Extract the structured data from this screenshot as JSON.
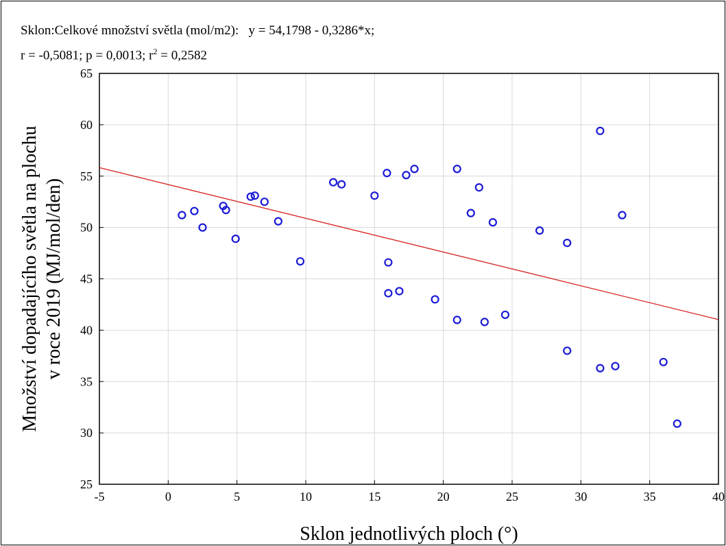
{
  "header": {
    "line1": "Sklon:Celkové množství světla (mol/m2):   y = 54,1798 - 0,3286*x;",
    "line2_prefix": "r = -0,5081; p = 0,0013; r",
    "line2_exp": "2",
    "line2_suffix": " = 0,2582"
  },
  "colors": {
    "points": "#1a1ad6",
    "fit_line": "#d62020",
    "grid": "#d8d8d8"
  },
  "chart_data": {
    "type": "scatter",
    "xlabel": "Sklon jednotlivých ploch (°)",
    "ylabel_lines": [
      "Množství dopadajícího světla na plochu",
      "v roce 2019 (MJ/mol/den)"
    ],
    "xlim": [
      -5,
      40
    ],
    "ylim": [
      25,
      65
    ],
    "xticks": [
      -5,
      0,
      5,
      10,
      15,
      20,
      25,
      30,
      35,
      40
    ],
    "yticks": [
      25,
      30,
      35,
      40,
      45,
      50,
      55,
      60,
      65
    ],
    "grid": true,
    "fit_line": {
      "intercept": 54.1798,
      "slope": -0.3286
    },
    "points": [
      [
        1.0,
        51.2
      ],
      [
        1.9,
        51.6
      ],
      [
        2.5,
        50.0
      ],
      [
        4.0,
        52.1
      ],
      [
        4.2,
        51.7
      ],
      [
        4.9,
        48.9
      ],
      [
        6.0,
        53.0
      ],
      [
        6.3,
        53.1
      ],
      [
        7.0,
        52.5
      ],
      [
        8.0,
        50.6
      ],
      [
        9.6,
        46.7
      ],
      [
        12.0,
        54.4
      ],
      [
        12.6,
        54.2
      ],
      [
        15.0,
        53.1
      ],
      [
        15.9,
        55.3
      ],
      [
        16.0,
        46.6
      ],
      [
        16.0,
        43.6
      ],
      [
        16.8,
        43.8
      ],
      [
        17.3,
        55.1
      ],
      [
        17.9,
        55.7
      ],
      [
        19.4,
        43.0
      ],
      [
        21.0,
        55.7
      ],
      [
        21.0,
        41.0
      ],
      [
        22.0,
        51.4
      ],
      [
        22.6,
        53.9
      ],
      [
        23.0,
        40.8
      ],
      [
        23.6,
        50.5
      ],
      [
        24.5,
        41.5
      ],
      [
        27.0,
        49.7
      ],
      [
        29.0,
        48.5
      ],
      [
        29.0,
        38.0
      ],
      [
        31.4,
        59.4
      ],
      [
        31.4,
        36.3
      ],
      [
        32.5,
        36.5
      ],
      [
        33.0,
        51.2
      ],
      [
        36.0,
        36.9
      ],
      [
        37.0,
        30.9
      ]
    ]
  }
}
